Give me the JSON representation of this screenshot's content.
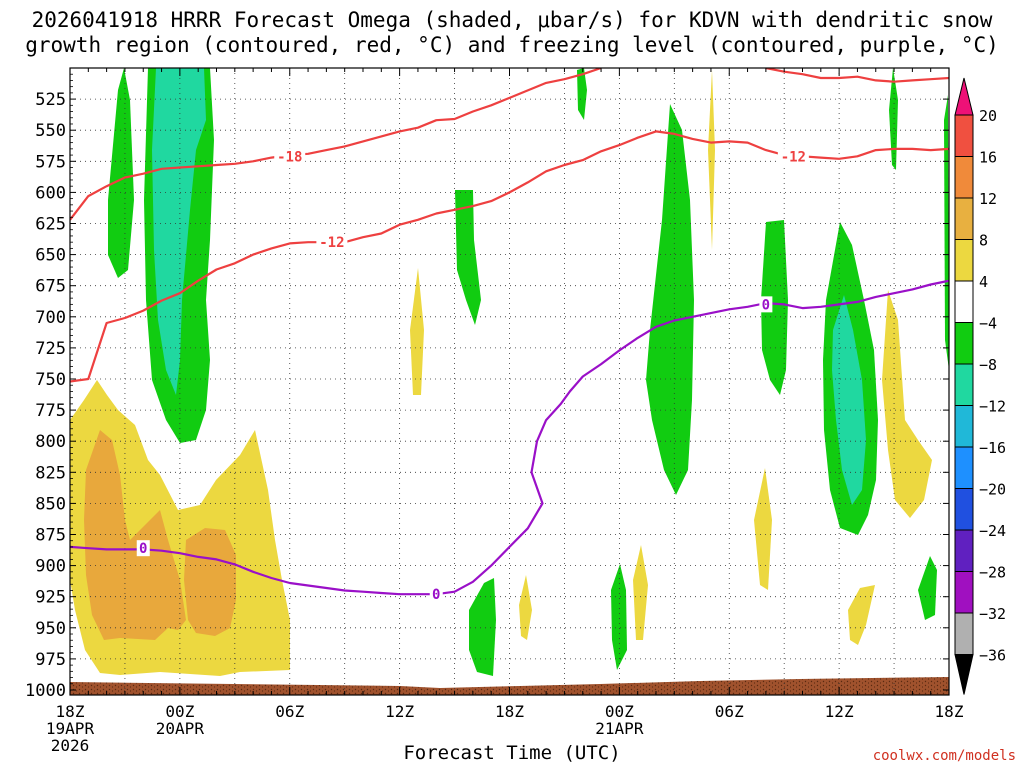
{
  "title": "2026041918 HRRR Forecast Omega (shaded, μbar/s) for KDVN with dendritic snow\ngrowth region (contoured, red, °C) and freezing level (contoured, purple, °C)",
  "credit": "coolwx.com/models",
  "chart_data": {
    "type": "time-height contour",
    "xlabel": "Forecast Time (UTC)",
    "x_range_hours": [
      0,
      48
    ],
    "x_ticks": [
      {
        "h": 0,
        "lines": [
          "18Z",
          "19APR",
          "2026"
        ]
      },
      {
        "h": 6,
        "lines": [
          "00Z",
          "20APR"
        ]
      },
      {
        "h": 12,
        "lines": [
          "06Z"
        ]
      },
      {
        "h": 18,
        "lines": [
          "12Z"
        ]
      },
      {
        "h": 24,
        "lines": [
          "18Z"
        ]
      },
      {
        "h": 30,
        "lines": [
          "00Z",
          "21APR"
        ]
      },
      {
        "h": 36,
        "lines": [
          "06Z"
        ]
      },
      {
        "h": 42,
        "lines": [
          "12Z"
        ]
      },
      {
        "h": 48,
        "lines": [
          "18Z"
        ]
      }
    ],
    "y_ticks_mb": [
      525,
      550,
      575,
      600,
      625,
      650,
      675,
      700,
      725,
      750,
      775,
      800,
      825,
      850,
      875,
      900,
      925,
      950,
      975,
      1000
    ],
    "y_range_mb": [
      500,
      1000
    ],
    "grid": true,
    "colorbar": {
      "labels": [
        "20",
        "16",
        "12",
        "8",
        "4",
        "−4",
        "−8",
        "−12",
        "−16",
        "−20",
        "−24",
        "−28",
        "−32",
        "−36"
      ],
      "colors": [
        "#ee1177",
        "#f05040",
        "#f08a3a",
        "#e8b040",
        "#ecd840",
        "#ffffff",
        "#11cc11",
        "#20d8a0",
        "#20b8d8",
        "#1e90ff",
        "#2050e0",
        "#6020c0",
        "#a010c0",
        "#b0b0b0",
        "#000000"
      ]
    },
    "contour_labels": {
      "red": [
        {
          "text": "-18",
          "h": 12.0,
          "mb": 571
        },
        {
          "text": "-12",
          "h": 14.3,
          "mb": 640
        },
        {
          "text": "-12",
          "h": 39.5,
          "mb": 571
        }
      ],
      "purple": [
        {
          "text": "0",
          "h": 4.0,
          "mb": 886
        },
        {
          "text": "0",
          "h": 20.0,
          "mb": 923
        },
        {
          "text": "0",
          "h": 38.0,
          "mb": 690
        }
      ]
    },
    "series": [
      {
        "contour": "red",
        "value": -18,
        "points": [
          [
            0,
            622
          ],
          [
            1,
            603
          ],
          [
            2,
            595
          ],
          [
            3,
            588
          ],
          [
            4,
            585
          ],
          [
            5,
            581
          ],
          [
            6,
            580
          ],
          [
            7,
            579
          ],
          [
            8,
            578
          ],
          [
            9,
            577
          ],
          [
            10,
            575
          ],
          [
            11,
            572
          ],
          [
            12,
            570
          ],
          [
            13,
            569
          ],
          [
            14,
            566
          ],
          [
            15,
            563
          ],
          [
            16,
            559
          ],
          [
            17,
            555
          ],
          [
            18,
            551
          ],
          [
            19,
            548
          ],
          [
            20,
            542
          ],
          [
            21,
            541
          ],
          [
            22,
            535
          ],
          [
            23,
            530
          ],
          [
            24,
            524
          ],
          [
            25,
            518
          ],
          [
            26,
            512
          ],
          [
            27,
            509
          ],
          [
            28,
            505
          ],
          [
            29,
            500
          ]
        ]
      },
      {
        "contour": "red",
        "value": -18,
        "points": [
          [
            38,
            500
          ],
          [
            39,
            503
          ],
          [
            40,
            505
          ],
          [
            41,
            508
          ],
          [
            42,
            508
          ],
          [
            43,
            507
          ],
          [
            44,
            510
          ],
          [
            45,
            511
          ],
          [
            46,
            510
          ],
          [
            47,
            509
          ],
          [
            48,
            508
          ]
        ]
      },
      {
        "contour": "red",
        "value": -12,
        "points": [
          [
            0,
            752
          ],
          [
            1,
            750
          ],
          [
            2,
            705
          ],
          [
            3,
            701
          ],
          [
            4,
            695
          ],
          [
            5,
            687
          ],
          [
            6,
            681
          ],
          [
            7,
            671
          ],
          [
            8,
            662
          ],
          [
            9,
            657
          ],
          [
            10,
            650
          ],
          [
            11,
            645
          ],
          [
            12,
            641
          ],
          [
            13,
            640
          ],
          [
            14,
            640
          ],
          [
            15,
            640
          ],
          [
            16,
            636
          ],
          [
            17,
            633
          ],
          [
            18,
            626
          ],
          [
            19,
            622
          ],
          [
            20,
            617
          ],
          [
            21,
            614
          ],
          [
            22,
            611
          ],
          [
            23,
            607
          ],
          [
            24,
            600
          ],
          [
            25,
            592
          ],
          [
            26,
            583
          ],
          [
            27,
            578
          ],
          [
            28,
            574
          ],
          [
            29,
            567
          ],
          [
            30,
            562
          ],
          [
            31,
            556
          ],
          [
            32,
            551
          ],
          [
            33,
            553
          ],
          [
            34,
            557
          ],
          [
            35,
            560
          ],
          [
            36,
            559
          ],
          [
            37,
            560
          ],
          [
            38,
            566
          ],
          [
            39,
            570
          ],
          [
            40,
            571
          ],
          [
            41,
            572
          ],
          [
            42,
            573
          ],
          [
            43,
            571
          ],
          [
            44,
            566
          ],
          [
            45,
            565
          ],
          [
            46,
            565
          ],
          [
            47,
            566
          ],
          [
            48,
            565
          ]
        ]
      },
      {
        "contour": "purple",
        "value": 0,
        "points": [
          [
            0,
            885
          ],
          [
            1,
            886
          ],
          [
            2,
            887
          ],
          [
            3,
            887
          ],
          [
            4,
            887
          ],
          [
            5,
            888
          ],
          [
            6,
            890
          ],
          [
            7,
            893
          ],
          [
            8,
            895
          ],
          [
            9,
            899
          ],
          [
            10,
            905
          ],
          [
            11,
            910
          ],
          [
            12,
            914
          ],
          [
            13,
            916
          ],
          [
            14,
            918
          ],
          [
            15,
            920
          ],
          [
            16,
            921
          ],
          [
            17,
            922
          ],
          [
            18,
            923
          ],
          [
            19,
            923
          ],
          [
            20,
            923
          ],
          [
            21,
            921
          ],
          [
            22,
            913
          ],
          [
            23,
            900
          ],
          [
            24,
            885
          ],
          [
            25,
            870
          ],
          [
            25.8,
            850
          ],
          [
            25.2,
            825
          ],
          [
            25.5,
            800
          ],
          [
            26,
            783
          ],
          [
            26.8,
            770
          ],
          [
            27.3,
            760
          ],
          [
            28,
            748
          ],
          [
            29,
            738
          ],
          [
            30,
            727
          ],
          [
            31,
            717
          ],
          [
            32,
            708
          ],
          [
            33,
            703
          ],
          [
            34,
            700
          ],
          [
            35,
            697
          ],
          [
            36,
            694
          ],
          [
            37,
            692
          ],
          [
            38,
            689
          ],
          [
            39,
            690
          ],
          [
            40,
            693
          ],
          [
            41,
            692
          ],
          [
            42,
            690
          ],
          [
            43,
            688
          ],
          [
            44,
            684
          ],
          [
            45,
            681
          ],
          [
            46,
            678
          ],
          [
            47,
            674
          ],
          [
            48,
            671
          ]
        ]
      }
    ]
  }
}
